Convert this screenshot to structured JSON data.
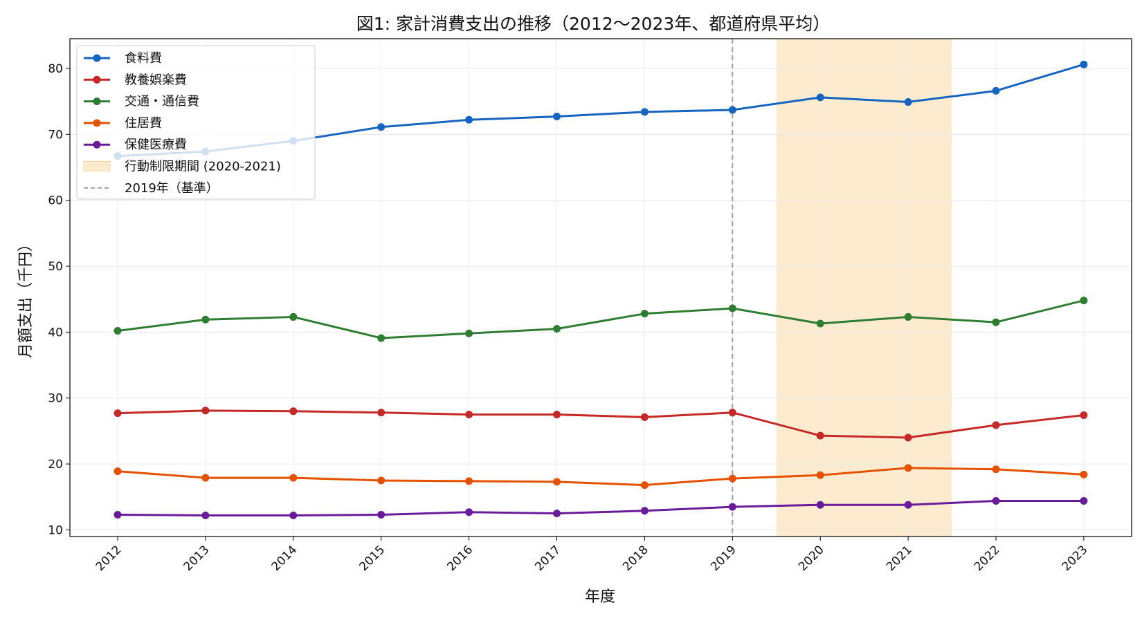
{
  "chart_data": {
    "type": "line",
    "title": "図1: 家計消費支出の推移（2012〜2023年、都道府県平均）",
    "xlabel": "年度",
    "ylabel": "月額支出（千円）",
    "categories": [
      "2012",
      "2013",
      "2014",
      "2015",
      "2016",
      "2017",
      "2018",
      "2019",
      "2020",
      "2021",
      "2022",
      "2023"
    ],
    "y_ticks": [
      "10",
      "20",
      "30",
      "40",
      "50",
      "60",
      "70",
      "80"
    ],
    "ylim": [
      9,
      84.5
    ],
    "grid": true,
    "legend_position": "top-left",
    "series": [
      {
        "name": "食料費",
        "color": "#1565c0",
        "values": [
          66.7,
          67.4,
          69.0,
          71.1,
          72.2,
          72.7,
          73.4,
          73.7,
          75.6,
          74.9,
          76.6,
          80.6
        ]
      },
      {
        "name": "教養娯楽費",
        "color": "#c62828",
        "values": [
          27.7,
          28.1,
          28.0,
          27.8,
          27.5,
          27.5,
          27.1,
          27.8,
          24.3,
          24.0,
          25.9,
          27.4
        ]
      },
      {
        "name": "交通・通信費",
        "color": "#2e7d32",
        "values": [
          40.2,
          41.9,
          42.3,
          39.1,
          39.8,
          40.5,
          42.8,
          43.6,
          41.3,
          42.3,
          41.5,
          44.8
        ]
      },
      {
        "name": "住居費",
        "color": "#e65100",
        "values": [
          18.9,
          17.9,
          17.9,
          17.5,
          17.4,
          17.3,
          16.8,
          17.8,
          18.3,
          19.4,
          19.2,
          18.4
        ]
      },
      {
        "name": "保健医療費",
        "color": "#6a1b9a",
        "values": [
          12.3,
          12.2,
          12.2,
          12.3,
          12.7,
          12.5,
          12.9,
          13.5,
          13.8,
          13.8,
          14.4,
          14.4
        ]
      }
    ],
    "shaded_region": {
      "label": "行動制限期間 (2020-2021)",
      "color": "#fdebd0",
      "from_year": 2019.5,
      "to_year": 2021.5
    },
    "reference_line": {
      "label": "2019年（基準）",
      "year": 2019,
      "color": "#9e9e9e"
    }
  }
}
